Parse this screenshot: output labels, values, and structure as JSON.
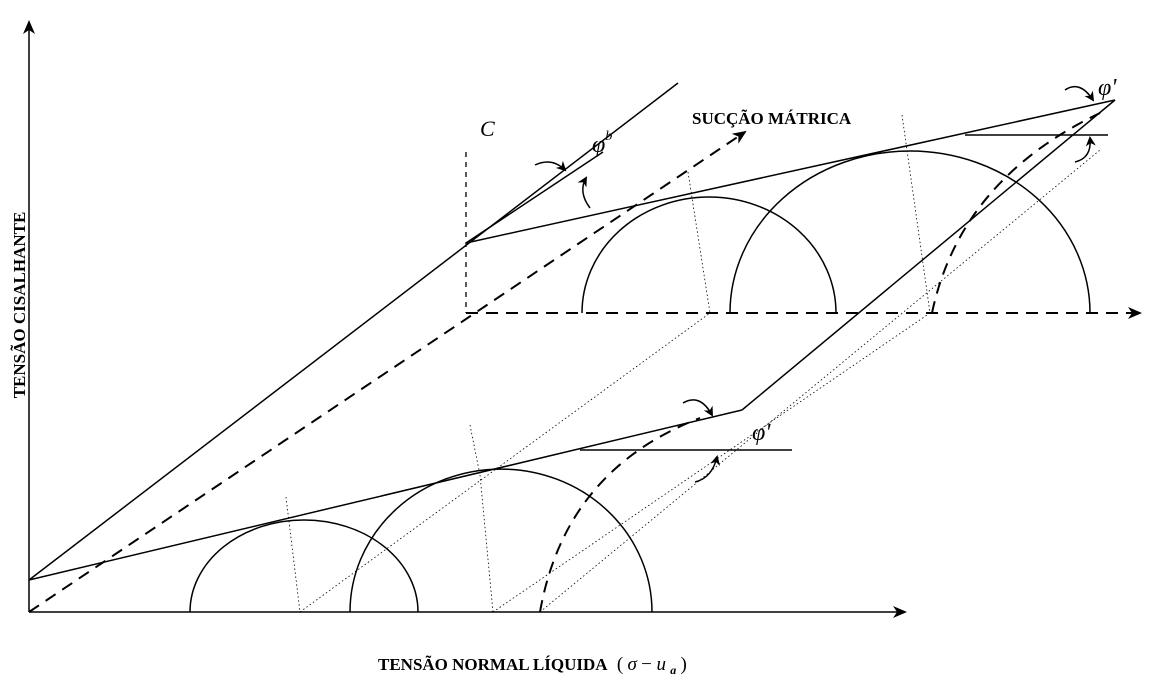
{
  "labels": {
    "y_axis": "TENSÃO CISALHANTE",
    "x_axis": "TENSÃO NORMAL LÍQUIDA",
    "x_axis_formula_sigma": "σ",
    "x_axis_formula_minus": " − ",
    "x_axis_formula_u": "u",
    "x_axis_formula_sub": "a",
    "x_axis_paren_open": "(",
    "x_axis_paren_close": ")",
    "suction_axis": "SUCÇÃO MÁTRICA",
    "cohesion": "C",
    "phi_b": "φ",
    "phi_b_sup": "b",
    "phi_prime_top": "φ'",
    "phi_prime_bottom": "φ'"
  }
}
